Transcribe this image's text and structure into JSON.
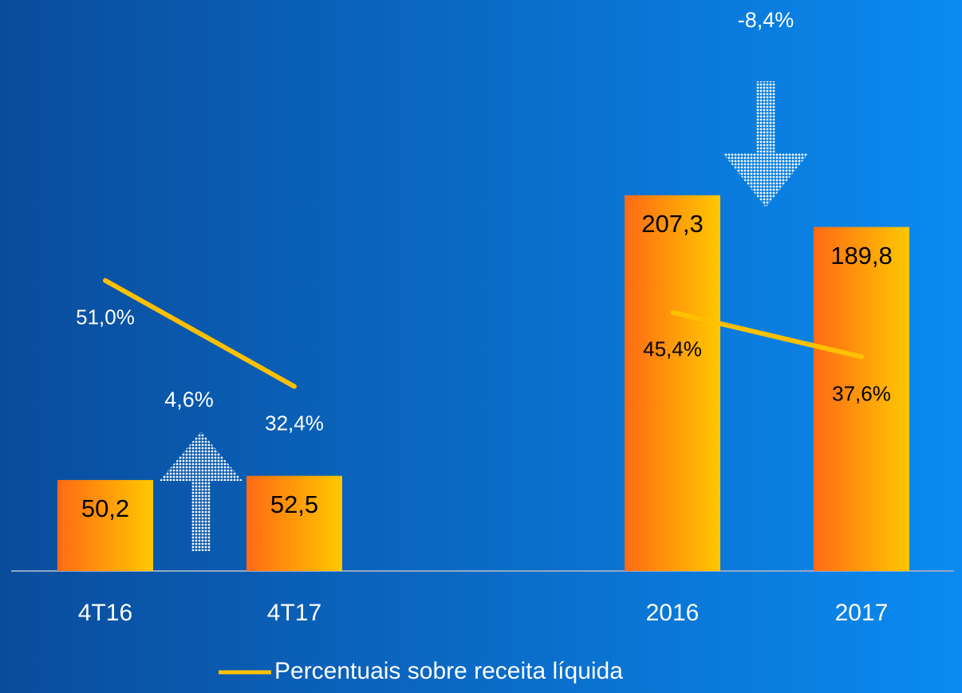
{
  "chart_data": {
    "type": "bar",
    "categories": [
      "4T16",
      "4T17",
      null,
      "2016",
      "2017"
    ],
    "bars": {
      "color": "#ff7a10",
      "values": [
        50.2,
        52.5,
        null,
        207.3,
        189.8
      ],
      "value_labels": [
        "50,2",
        "52,5",
        null,
        "207,3",
        "189,8"
      ]
    },
    "series": [
      {
        "name": "Percentuais sobre receita líquida",
        "color": "#ffc000",
        "axis": "y2",
        "values": [
          51.0,
          32.4,
          null,
          45.4,
          37.6
        ],
        "value_labels": [
          "51,0%",
          "32,4%",
          null,
          "45,4%",
          "37,6%"
        ]
      }
    ],
    "ylim": [
      0,
      220
    ],
    "y2lim": [
      0,
      70
    ],
    "annotations": [
      {
        "text": "4,6%",
        "direction": "up"
      },
      {
        "text": "-8,4%",
        "direction": "down"
      }
    ],
    "legend": "bottom"
  }
}
